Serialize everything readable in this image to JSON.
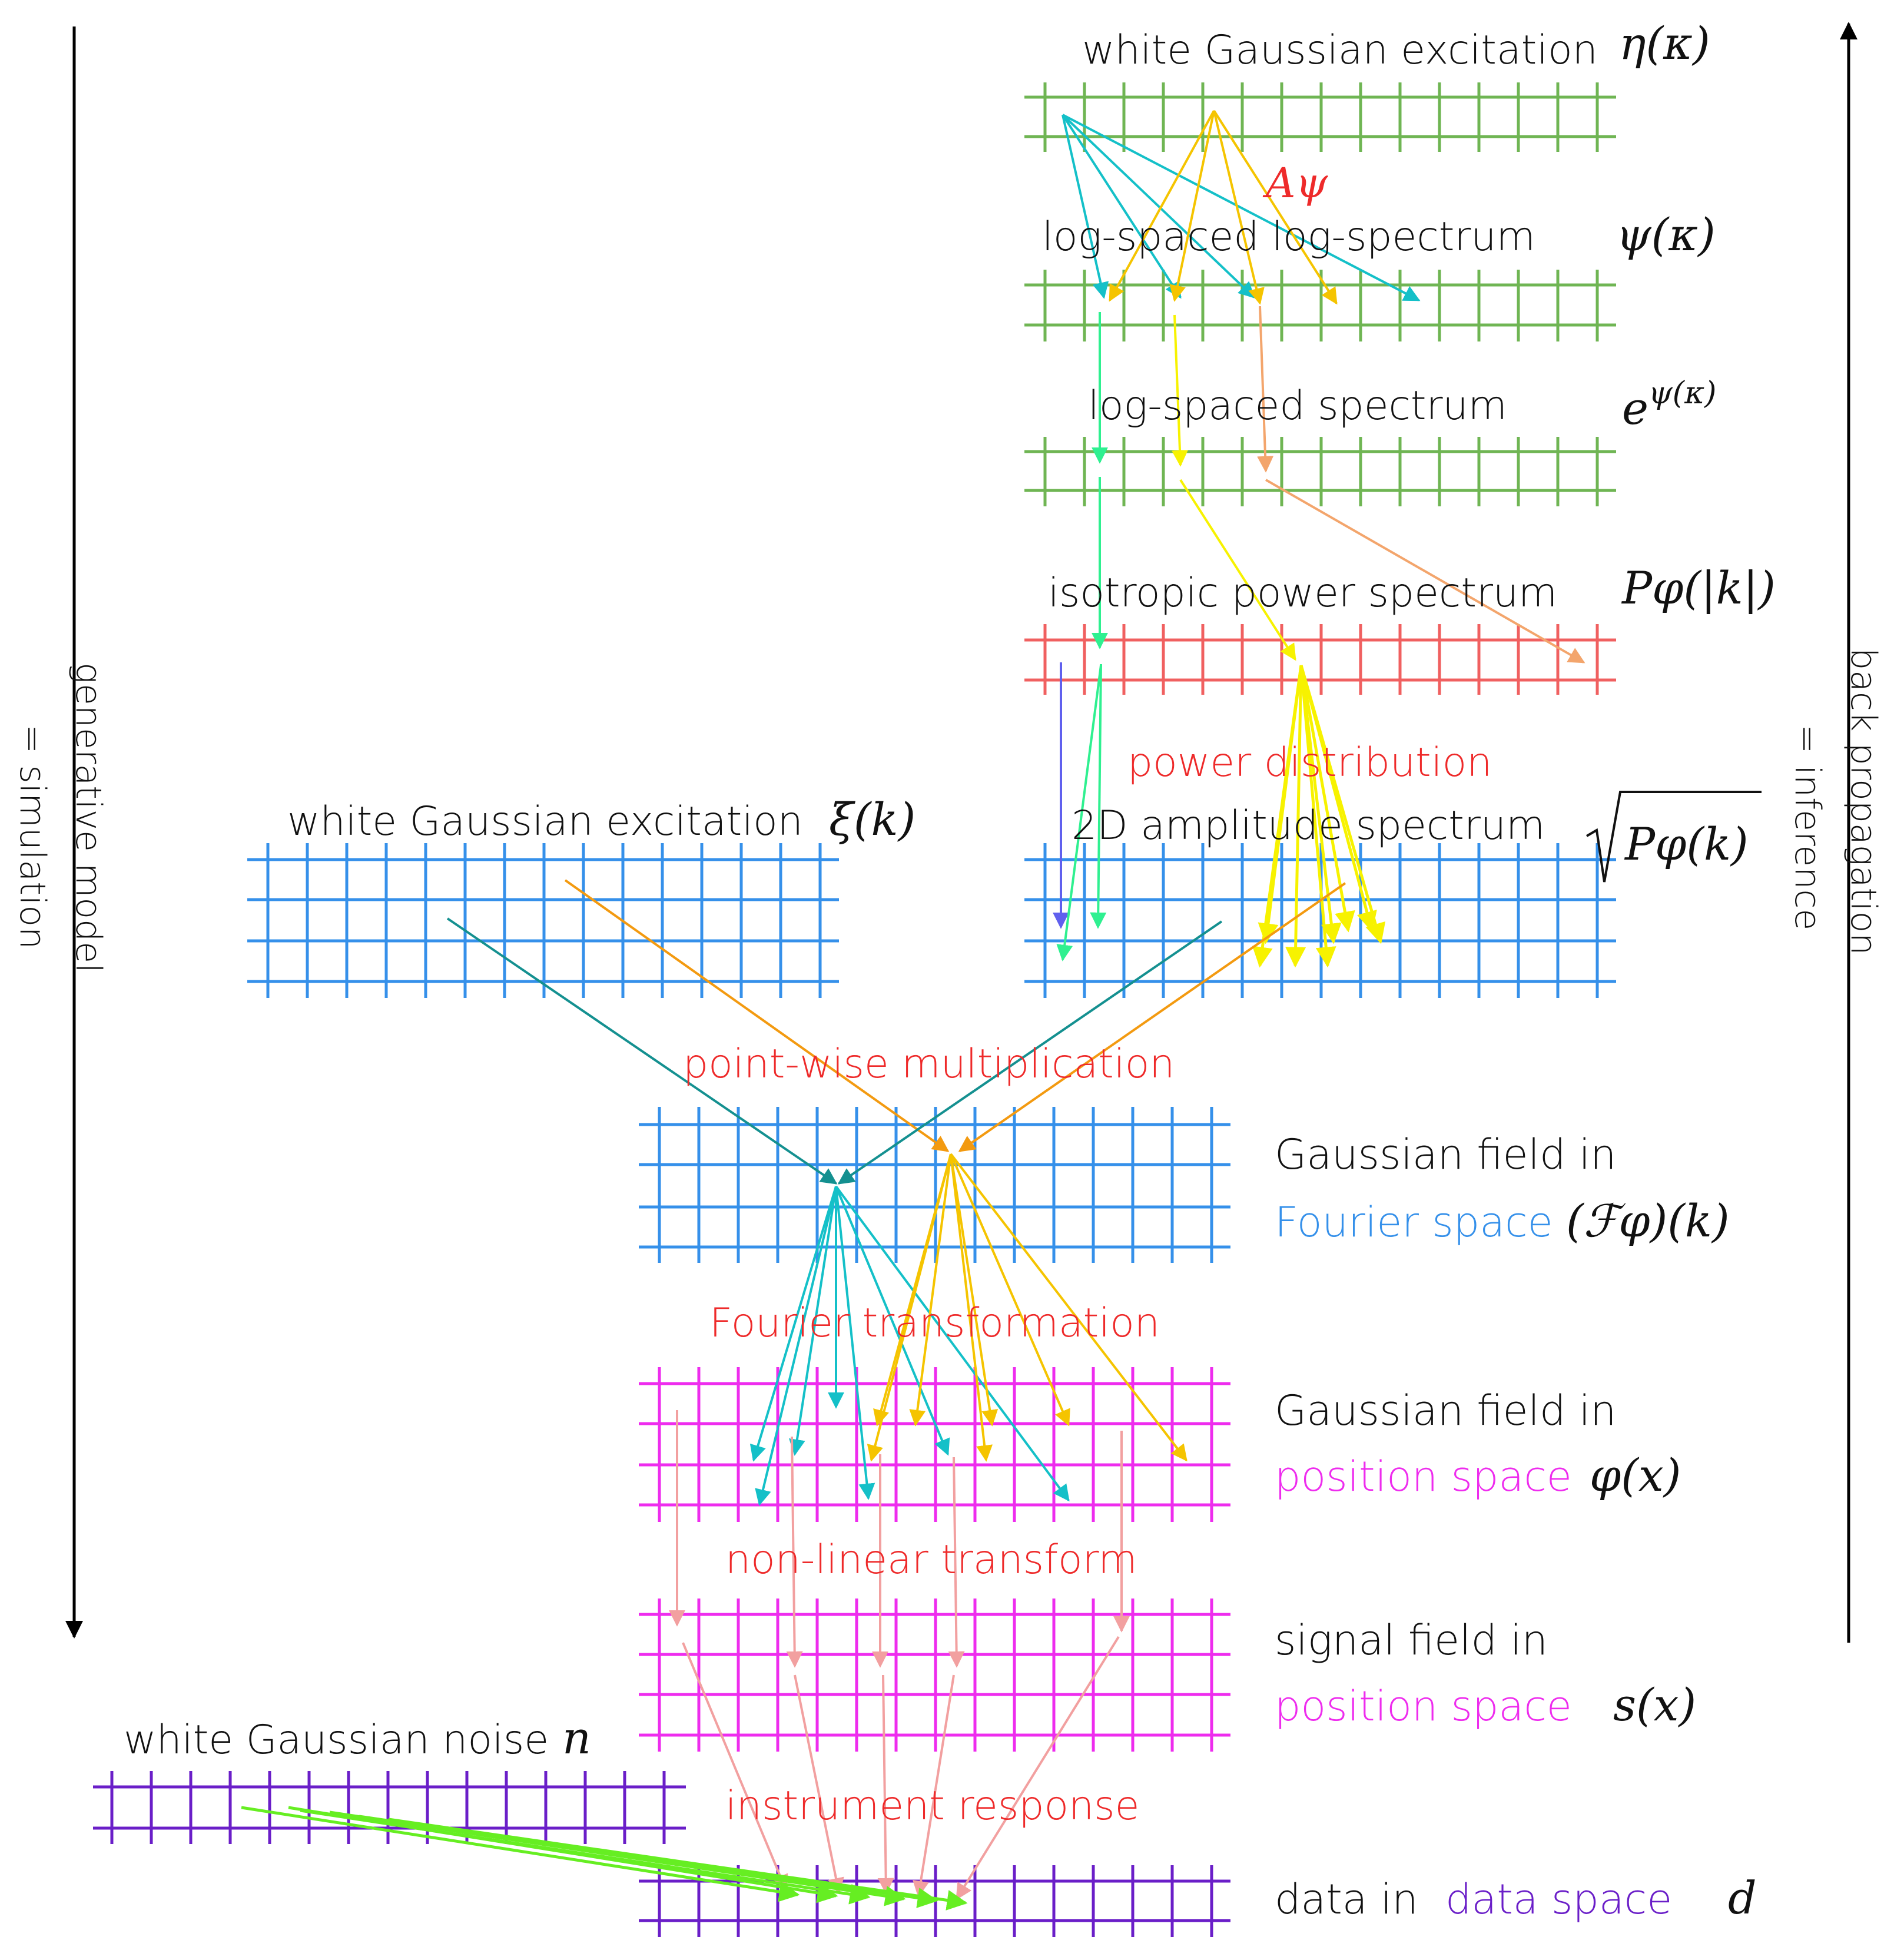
{
  "colors": {
    "green": "#6fb553",
    "coral": "#f06060",
    "blue": "#3590ea",
    "magenta": "#ee2cee",
    "violet": "#6a1ec8",
    "op_red": "#ee2a2a",
    "cyan": "#14c0c8",
    "gold": "#f5c400",
    "yellow": "#f7f200",
    "orange": "#f39a10",
    "teal": "#149090",
    "mint": "#2ff090",
    "peach": "#f3a56c",
    "salmon": "#f2a0a0",
    "lime": "#66ee22",
    "indigo": "#6060ee"
  },
  "side": {
    "left_line1": "generative model",
    "left_line2": "= simulation",
    "right_line1": "back propagation",
    "right_line2": "= inference"
  },
  "labels": {
    "eta_label": "white Gaussian excitation",
    "eta_math": "η(κ)",
    "A_psi": "Aψ",
    "psi_label": "log-spaced log-spectrum",
    "psi_math": "ψ(κ)",
    "exp_label": "log-spaced spectrum",
    "exp_math_base": "e",
    "exp_math_sup": "ψ(κ)",
    "P_label": "isotropic power spectrum",
    "P_math": "Pφ(|k|)",
    "power_dist": "power distribution",
    "amp_label": "2D amplitude spectrum",
    "amp_math": "Pφ(k)",
    "xi_label": "white Gaussian excitation",
    "xi_math": "ξ(k)",
    "pointwise": "point-wise multiplication",
    "fourier_field_line1": "Gaussian field in",
    "fourier_field_space": "Fourier space",
    "fourier_field_math": "(ℱφ)(k)",
    "fourier_transform": "Fourier transformation",
    "pos_field_line1": "Gaussian field in",
    "pos_field_space": "position space",
    "pos_field_math": "φ(x)",
    "nonlinear": "non-linear transform",
    "signal_line1": "signal field in",
    "signal_space": "position space",
    "signal_math": "s(x)",
    "noise_label": "white Gaussian noise",
    "noise_math": "n",
    "instrument": "instrument response",
    "data_prefix": "data in",
    "data_space": "data space",
    "data_math": "d"
  }
}
